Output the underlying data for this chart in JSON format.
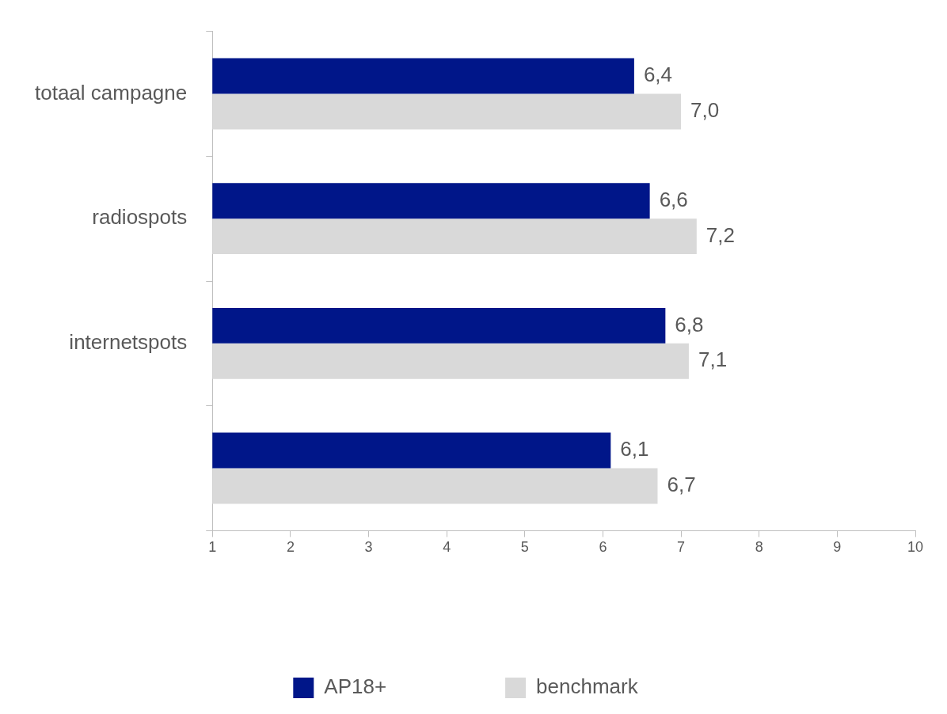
{
  "chart_data": {
    "type": "bar",
    "orientation": "horizontal",
    "categories": [
      "totaal campagne",
      "radiospots",
      "internetspots",
      null
    ],
    "series": [
      {
        "name": "AP18+",
        "color": "#001689",
        "values": [
          6.4,
          6.6,
          6.8,
          6.1
        ],
        "value_labels": [
          "6,4",
          "6,6",
          "6,8",
          "6,1"
        ]
      },
      {
        "name": "benchmark",
        "color": "#d9d9d9",
        "values": [
          7.0,
          7.2,
          7.1,
          6.7
        ],
        "value_labels": [
          "7,0",
          "7,2",
          "7,1",
          "6,7"
        ]
      }
    ],
    "xlim": [
      1,
      10
    ],
    "xticks": [
      1,
      2,
      3,
      4,
      5,
      6,
      7,
      8,
      9,
      10
    ],
    "grid": false,
    "legend": "bottom"
  }
}
